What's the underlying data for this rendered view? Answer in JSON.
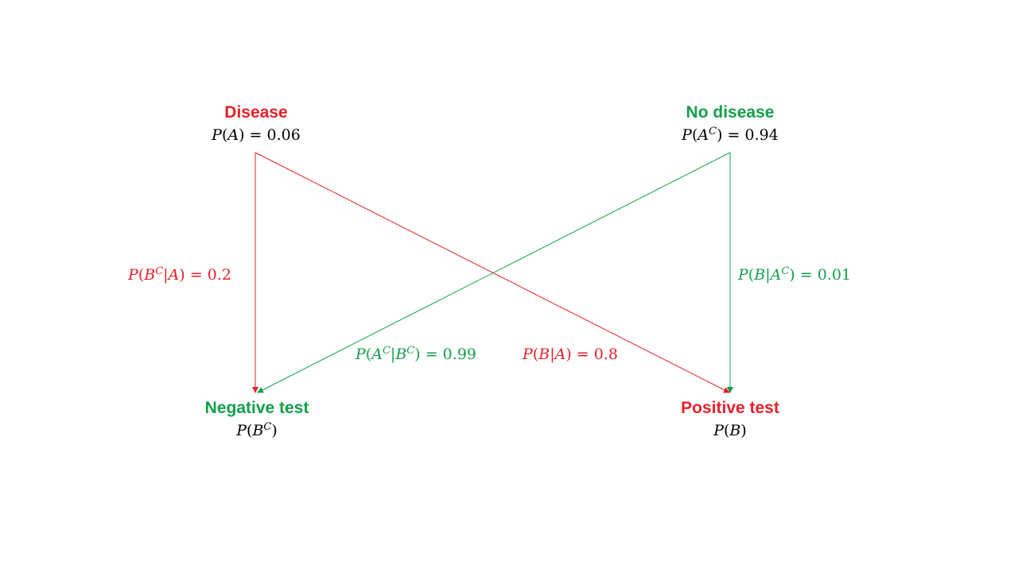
{
  "colors": {
    "red": "#e8202a",
    "green": "#12a04a",
    "text": "#000000",
    "background": "#ffffff"
  },
  "nodes": {
    "disease": {
      "title": "Disease",
      "prob": {
        "fn": "P",
        "arg": "A",
        "sup": "",
        "value": "0.06"
      }
    },
    "no_disease": {
      "title": "No disease",
      "prob": {
        "fn": "P",
        "arg": "A",
        "sup": "C",
        "value": "0.94"
      }
    },
    "negative_test": {
      "title": "Negative test",
      "prob": {
        "fn": "P",
        "arg": "B",
        "sup": "C"
      }
    },
    "positive_test": {
      "title": "Positive test",
      "prob": {
        "fn": "P",
        "arg": "B",
        "sup": ""
      }
    }
  },
  "edges": {
    "disease_to_negative": {
      "from": "disease",
      "to": "negative_test",
      "label": "P(B^C|A) = 0.2"
    },
    "disease_to_positive": {
      "from": "disease",
      "to": "positive_test",
      "label": "P(B|A) = 0.8"
    },
    "nodisease_to_negative": {
      "from": "no_disease",
      "to": "negative_test",
      "label": "P(A^C|B^C) = 0.99"
    },
    "nodisease_to_positive": {
      "from": "no_disease",
      "to": "positive_test",
      "label": "P(B|A^C) = 0.01"
    }
  }
}
